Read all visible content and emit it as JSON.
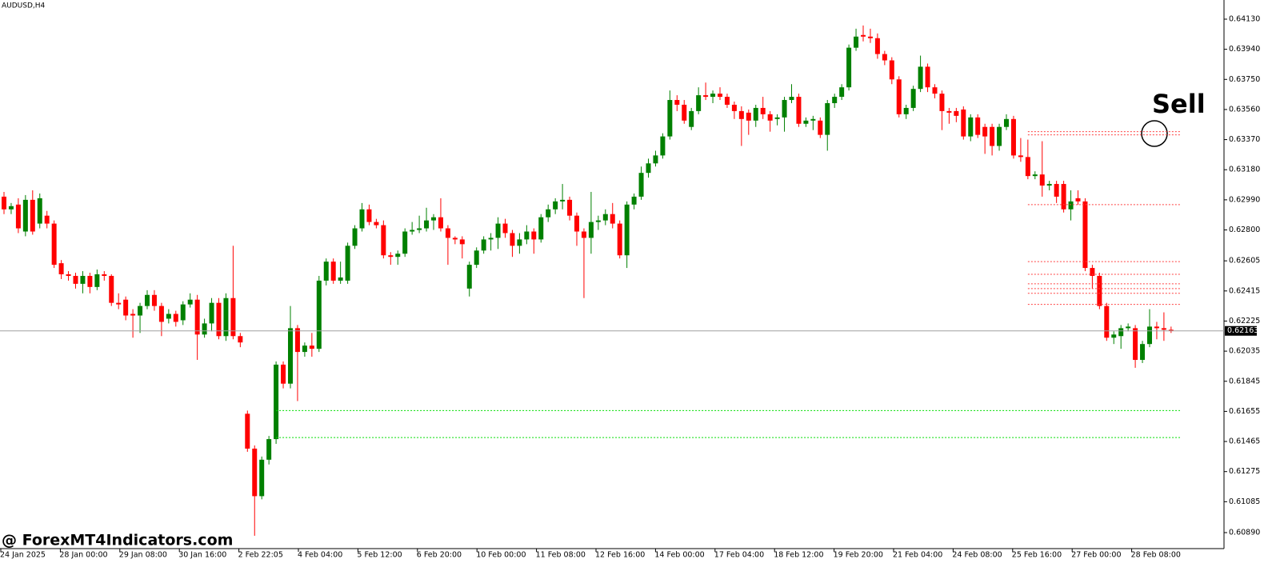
{
  "chart_data": {
    "type": "candlestick",
    "title": "AUDUSD,H4",
    "annotation": "Sell",
    "up_color": "#008000",
    "down_color": "#ff0000",
    "x_labels": [
      "24 Jan 2025",
      "28 Jan 00:00",
      "29 Jan 08:00",
      "30 Jan 16:00",
      "2 Feb 22:05",
      "4 Feb 04:00",
      "5 Feb 12:00",
      "6 Feb 20:00",
      "10 Feb 00:00",
      "11 Feb 08:00",
      "12 Feb 16:00",
      "14 Feb 00:00",
      "17 Feb 04:00",
      "18 Feb 12:00",
      "19 Feb 20:00",
      "21 Feb 04:00",
      "24 Feb 08:00",
      "25 Feb 16:00",
      "27 Feb 00:00",
      "28 Feb 08:00"
    ],
    "ylim": [
      0.60789,
      0.64251
    ],
    "yticks": [
      {
        "value": 0.6413,
        "label": "0.64130"
      },
      {
        "value": 0.6394,
        "label": "0.63940"
      },
      {
        "value": 0.6375,
        "label": "0.63750"
      },
      {
        "value": 0.6356,
        "label": "0.63560"
      },
      {
        "value": 0.6337,
        "label": "0.63370"
      },
      {
        "value": 0.6318,
        "label": "0.63180"
      },
      {
        "value": 0.6299,
        "label": "0.62990"
      },
      {
        "value": 0.628,
        "label": "0.62800"
      },
      0.62605,
      0.62415,
      0.62225,
      0.62035,
      0.61845,
      0.61655,
      0.61465,
      0.61275,
      0.61085,
      {
        "value": 0.6089,
        "label": "0.60890"
      }
    ],
    "current_price": 0.62163,
    "support_levels": [
      0.6166,
      0.6149
    ],
    "support_color": "#00dd00",
    "resistance_levels": [
      0.6342,
      0.634,
      0.6296,
      0.626,
      0.6252,
      0.6246,
      0.6243,
      0.624,
      0.6233
    ],
    "resistance_color": "#ff4040",
    "ohlc": [
      [
        0.6301,
        0.6304,
        0.629,
        0.6293
      ],
      [
        0.6293,
        0.6297,
        0.629,
        0.6295
      ],
      [
        0.6296,
        0.63,
        0.6278,
        0.6281
      ],
      [
        0.6279,
        0.6302,
        0.6276,
        0.6299
      ],
      [
        0.6299,
        0.6305,
        0.6277,
        0.6279
      ],
      [
        0.6284,
        0.6303,
        0.6281,
        0.63
      ],
      [
        0.6289,
        0.6292,
        0.6281,
        0.6284
      ],
      [
        0.6284,
        0.6286,
        0.6256,
        0.6258
      ],
      [
        0.6259,
        0.6261,
        0.6249,
        0.6252
      ],
      [
        0.6252,
        0.6254,
        0.6248,
        0.6251
      ],
      [
        0.6251,
        0.6253,
        0.6243,
        0.6246
      ],
      [
        0.6246,
        0.6254,
        0.624,
        0.6251
      ],
      [
        0.6251,
        0.6253,
        0.624,
        0.6244
      ],
      [
        0.6244,
        0.6255,
        0.6242,
        0.6252
      ],
      [
        0.6252,
        0.6254,
        0.6248,
        0.6251
      ],
      [
        0.6251,
        0.6252,
        0.6232,
        0.6234
      ],
      [
        0.6234,
        0.624,
        0.623,
        0.6233
      ],
      [
        0.6236,
        0.6238,
        0.6223,
        0.6226
      ],
      [
        0.6227,
        0.623,
        0.6212,
        0.6226
      ],
      [
        0.6226,
        0.6234,
        0.6215,
        0.6232
      ],
      [
        0.6232,
        0.6242,
        0.623,
        0.6239
      ],
      [
        0.6239,
        0.6242,
        0.6229,
        0.6232
      ],
      [
        0.6232,
        0.6234,
        0.6213,
        0.6222
      ],
      [
        0.6224,
        0.623,
        0.6221,
        0.6227
      ],
      [
        0.6227,
        0.6229,
        0.6219,
        0.6222
      ],
      [
        0.6223,
        0.6235,
        0.622,
        0.6233
      ],
      [
        0.6233,
        0.624,
        0.6231,
        0.6236
      ],
      [
        0.6236,
        0.6239,
        0.6198,
        0.6214
      ],
      [
        0.6214,
        0.6224,
        0.6212,
        0.6221
      ],
      [
        0.6221,
        0.6237,
        0.6216,
        0.6234
      ],
      [
        0.6234,
        0.6237,
        0.6211,
        0.6213
      ],
      [
        0.6213,
        0.624,
        0.621,
        0.6237
      ],
      [
        0.6237,
        0.627,
        0.6211,
        0.6213
      ],
      [
        0.6213,
        0.6215,
        0.6206,
        0.6209
      ],
      [
        0.6164,
        0.6166,
        0.614,
        0.6142
      ],
      [
        0.6142,
        0.6144,
        0.6087,
        0.6112
      ],
      [
        0.6112,
        0.6137,
        0.611,
        0.6135
      ],
      [
        0.6135,
        0.615,
        0.6132,
        0.6148
      ],
      [
        0.6148,
        0.6197,
        0.6145,
        0.6195
      ],
      [
        0.6195,
        0.6197,
        0.618,
        0.6183
      ],
      [
        0.6183,
        0.6232,
        0.618,
        0.6218
      ],
      [
        0.6218,
        0.622,
        0.6172,
        0.6203
      ],
      [
        0.6203,
        0.6209,
        0.62,
        0.6207
      ],
      [
        0.6207,
        0.6215,
        0.62,
        0.6205
      ],
      [
        0.6205,
        0.6251,
        0.6203,
        0.6248
      ],
      [
        0.6248,
        0.6262,
        0.6245,
        0.626
      ],
      [
        0.626,
        0.6262,
        0.6246,
        0.6248
      ],
      [
        0.6248,
        0.626,
        0.6246,
        0.625
      ],
      [
        0.6248,
        0.6272,
        0.6246,
        0.627
      ],
      [
        0.627,
        0.6283,
        0.6268,
        0.6281
      ],
      [
        0.6281,
        0.6297,
        0.6279,
        0.6293
      ],
      [
        0.6293,
        0.6296,
        0.6283,
        0.6285
      ],
      [
        0.6285,
        0.6287,
        0.6281,
        0.6283
      ],
      [
        0.6283,
        0.6286,
        0.6262,
        0.6264
      ],
      [
        0.6264,
        0.6266,
        0.6258,
        0.6263
      ],
      [
        0.6263,
        0.6267,
        0.6258,
        0.6265
      ],
      [
        0.6265,
        0.6281,
        0.6263,
        0.6279
      ],
      [
        0.6279,
        0.6285,
        0.6277,
        0.628
      ],
      [
        0.628,
        0.6289,
        0.6278,
        0.6281
      ],
      [
        0.6281,
        0.6294,
        0.6279,
        0.6286
      ],
      [
        0.6286,
        0.629,
        0.628,
        0.6288
      ],
      [
        0.6288,
        0.63,
        0.6279,
        0.6281
      ],
      [
        0.6281,
        0.6283,
        0.6258,
        0.6275
      ],
      [
        0.6275,
        0.6276,
        0.6271,
        0.6274
      ],
      [
        0.6274,
        0.6276,
        0.6262,
        0.6271
      ],
      [
        0.6243,
        0.626,
        0.6238,
        0.6258
      ],
      [
        0.6258,
        0.6269,
        0.6256,
        0.6267
      ],
      [
        0.6267,
        0.6276,
        0.6265,
        0.6274
      ],
      [
        0.6274,
        0.6278,
        0.6267,
        0.6275
      ],
      [
        0.6275,
        0.6288,
        0.6268,
        0.6284
      ],
      [
        0.6284,
        0.6287,
        0.6275,
        0.6278
      ],
      [
        0.6278,
        0.628,
        0.6263,
        0.627
      ],
      [
        0.627,
        0.6278,
        0.6265,
        0.6274
      ],
      [
        0.6274,
        0.6283,
        0.6271,
        0.6279
      ],
      [
        0.6279,
        0.6281,
        0.6265,
        0.6274
      ],
      [
        0.6274,
        0.629,
        0.6272,
        0.6288
      ],
      [
        0.6288,
        0.6296,
        0.6285,
        0.6293
      ],
      [
        0.6293,
        0.63,
        0.629,
        0.6298
      ],
      [
        0.6298,
        0.6309,
        0.6293,
        0.6299
      ],
      [
        0.6299,
        0.6301,
        0.6286,
        0.6289
      ],
      [
        0.6289,
        0.6291,
        0.627,
        0.6279
      ],
      [
        0.6279,
        0.6281,
        0.6237,
        0.6275
      ],
      [
        0.6275,
        0.6304,
        0.6265,
        0.6285
      ],
      [
        0.6285,
        0.6289,
        0.628,
        0.6286
      ],
      [
        0.6286,
        0.6293,
        0.6283,
        0.629
      ],
      [
        0.629,
        0.6297,
        0.6281,
        0.6284
      ],
      [
        0.6284,
        0.6286,
        0.6262,
        0.6264
      ],
      [
        0.6264,
        0.6298,
        0.6256,
        0.6296
      ],
      [
        0.6296,
        0.6303,
        0.6293,
        0.6301
      ],
      [
        0.6301,
        0.632,
        0.6299,
        0.6316
      ],
      [
        0.6316,
        0.6325,
        0.6313,
        0.6322
      ],
      [
        0.6322,
        0.633,
        0.632,
        0.6327
      ],
      [
        0.6327,
        0.6341,
        0.6325,
        0.6339
      ],
      [
        0.6339,
        0.6368,
        0.6337,
        0.6362
      ],
      [
        0.6362,
        0.6365,
        0.6355,
        0.6359
      ],
      [
        0.6359,
        0.6362,
        0.6347,
        0.6349
      ],
      [
        0.6345,
        0.6357,
        0.6343,
        0.6355
      ],
      [
        0.6355,
        0.637,
        0.6353,
        0.6365
      ],
      [
        0.6365,
        0.6373,
        0.6362,
        0.6364
      ],
      [
        0.6364,
        0.6368,
        0.636,
        0.6366
      ],
      [
        0.6366,
        0.637,
        0.6362,
        0.6364
      ],
      [
        0.6364,
        0.6366,
        0.6357,
        0.6359
      ],
      [
        0.6359,
        0.6361,
        0.635,
        0.6355
      ],
      [
        0.6355,
        0.6358,
        0.6333,
        0.635
      ],
      [
        0.6354,
        0.6356,
        0.634,
        0.6349
      ],
      [
        0.6349,
        0.6359,
        0.6345,
        0.6357
      ],
      [
        0.6357,
        0.6364,
        0.635,
        0.6353
      ],
      [
        0.6353,
        0.6355,
        0.6342,
        0.6349
      ],
      [
        0.635,
        0.6353,
        0.6346,
        0.6351
      ],
      [
        0.6351,
        0.6364,
        0.6342,
        0.6362
      ],
      [
        0.6362,
        0.6372,
        0.636,
        0.6364
      ],
      [
        0.6364,
        0.6366,
        0.6345,
        0.6347
      ],
      [
        0.6347,
        0.6351,
        0.6345,
        0.6349
      ],
      [
        0.6349,
        0.6352,
        0.6343,
        0.635
      ],
      [
        0.6349,
        0.6351,
        0.6338,
        0.634
      ],
      [
        0.634,
        0.6362,
        0.633,
        0.636
      ],
      [
        0.636,
        0.6366,
        0.6357,
        0.6364
      ],
      [
        0.6364,
        0.6372,
        0.6362,
        0.637
      ],
      [
        0.637,
        0.6397,
        0.6368,
        0.6395
      ],
      [
        0.6395,
        0.6407,
        0.6393,
        0.6402
      ],
      [
        0.6403,
        0.6409,
        0.6399,
        0.6402
      ],
      [
        0.6402,
        0.6407,
        0.6398,
        0.6401
      ],
      [
        0.6401,
        0.6404,
        0.6388,
        0.6391
      ],
      [
        0.6391,
        0.6393,
        0.6384,
        0.6387
      ],
      [
        0.6387,
        0.6389,
        0.6372,
        0.6375
      ],
      [
        0.6375,
        0.6377,
        0.6351,
        0.6353
      ],
      [
        0.6353,
        0.6359,
        0.635,
        0.6357
      ],
      [
        0.6357,
        0.6371,
        0.6355,
        0.6369
      ],
      [
        0.6369,
        0.639,
        0.6367,
        0.6383
      ],
      [
        0.6383,
        0.6385,
        0.6367,
        0.637
      ],
      [
        0.637,
        0.6372,
        0.6363,
        0.6366
      ],
      [
        0.6366,
        0.6368,
        0.6343,
        0.6355
      ],
      [
        0.6355,
        0.6357,
        0.6347,
        0.6354
      ],
      [
        0.6355,
        0.6357,
        0.6348,
        0.6352
      ],
      [
        0.6356,
        0.6358,
        0.6337,
        0.6339
      ],
      [
        0.6339,
        0.6353,
        0.6336,
        0.6351
      ],
      [
        0.6351,
        0.6353,
        0.6338,
        0.634
      ],
      [
        0.6345,
        0.6347,
        0.6328,
        0.6339
      ],
      [
        0.6345,
        0.6347,
        0.6327,
        0.6333
      ],
      [
        0.6333,
        0.6347,
        0.633,
        0.6345
      ],
      [
        0.6345,
        0.6353,
        0.6343,
        0.635
      ],
      [
        0.635,
        0.6352,
        0.6325,
        0.6327
      ],
      [
        0.6327,
        0.6338,
        0.6323,
        0.6326
      ],
      [
        0.6326,
        0.6337,
        0.6312,
        0.6314
      ],
      [
        0.6314,
        0.6317,
        0.6312,
        0.6315
      ],
      [
        0.6315,
        0.6336,
        0.6301,
        0.6308
      ],
      [
        0.6308,
        0.6311,
        0.6305,
        0.6309
      ],
      [
        0.6309,
        0.6311,
        0.6297,
        0.6301
      ],
      [
        0.6309,
        0.6311,
        0.6291,
        0.6293
      ],
      [
        0.6293,
        0.6305,
        0.6286,
        0.6298
      ],
      [
        0.63,
        0.6305,
        0.6296,
        0.6298
      ],
      [
        0.6298,
        0.63,
        0.6254,
        0.6256
      ],
      [
        0.6256,
        0.6258,
        0.6243,
        0.6251
      ],
      [
        0.6251,
        0.6253,
        0.623,
        0.6232
      ],
      [
        0.6232,
        0.6234,
        0.621,
        0.6212
      ],
      [
        0.6212,
        0.6216,
        0.6208,
        0.6214
      ],
      [
        0.6213,
        0.622,
        0.6205,
        0.6218
      ],
      [
        0.6218,
        0.6221,
        0.6216,
        0.6219
      ],
      [
        0.6218,
        0.622,
        0.6193,
        0.6198
      ],
      [
        0.6198,
        0.621,
        0.6196,
        0.6208
      ],
      [
        0.6208,
        0.623,
        0.6206,
        0.6219
      ],
      [
        0.6219,
        0.6222,
        0.6211,
        0.6218
      ],
      [
        0.6218,
        0.6228,
        0.621,
        0.6217
      ],
      [
        0.6217,
        0.6219,
        0.6215,
        0.62163
      ]
    ]
  },
  "watermark": "@ ForexMT4Indicators.com"
}
